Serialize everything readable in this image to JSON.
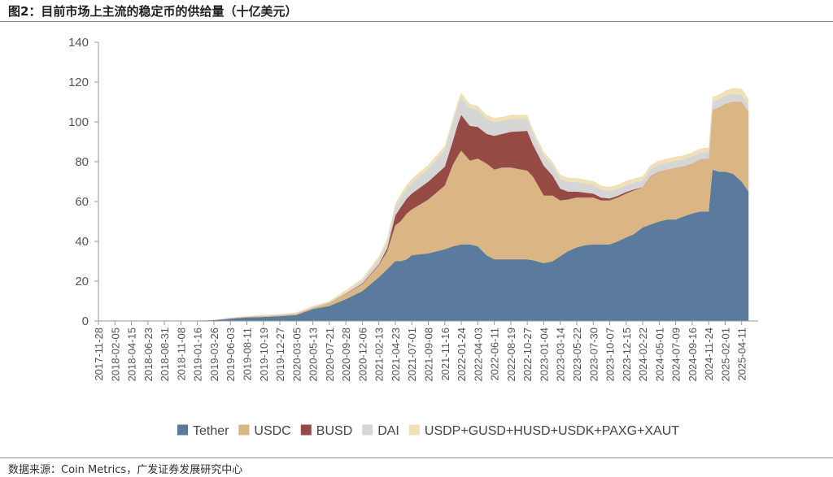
{
  "figure": {
    "title": "图2：目前市场上主流的稳定币的供给量（十亿美元）",
    "source": "数据来源：Coin Metrics，广发证券发展研究中心"
  },
  "chart_data": {
    "type": "area",
    "stacked": true,
    "title": "图2：目前市场上主流的稳定币的供给量（十亿美元）",
    "xlabel": "",
    "ylabel": "",
    "ylim": [
      0,
      140
    ],
    "yticks": [
      0,
      20,
      40,
      60,
      80,
      100,
      120,
      140
    ],
    "grid": false,
    "legend_position": "bottom",
    "x_tick_labels": [
      "2017-11-28",
      "2018-02-05",
      "2018-04-15",
      "2018-06-23",
      "2018-08-31",
      "2018-11-08",
      "2019-01-16",
      "2019-03-26",
      "2019-06-03",
      "2019-08-11",
      "2019-10-19",
      "2019-12-27",
      "2020-03-05",
      "2020-05-13",
      "2020-07-21",
      "2020-09-28",
      "2020-12-06",
      "2021-02-13",
      "2021-04-23",
      "2021-07-01",
      "2021-09-08",
      "2021-11-16",
      "2022-01-24",
      "2022-04-03",
      "2022-06-11",
      "2022-08-19",
      "2022-10-27",
      "2023-01-04",
      "2023-03-14",
      "2023-05-22",
      "2023-07-30",
      "2023-10-07",
      "2023-12-15",
      "2024-02-22",
      "2024-05-01",
      "2024-07-09",
      "2024-09-16",
      "2024-11-24",
      "2025-02-01",
      "2025-04-11"
    ],
    "x": [
      "2017-11-28",
      "2018-02-05",
      "2018-04-15",
      "2018-06-23",
      "2018-08-31",
      "2018-11-08",
      "2019-01-16",
      "2019-03-26",
      "2019-06-03",
      "2019-08-11",
      "2019-10-19",
      "2019-12-27",
      "2020-03-05",
      "2020-05-13",
      "2020-07-21",
      "2020-09-28",
      "2020-12-06",
      "2021-02-13",
      "2021-03-20",
      "2021-04-23",
      "2021-05-15",
      "2021-06-10",
      "2021-07-01",
      "2021-09-08",
      "2021-11-16",
      "2021-12-20",
      "2022-01-10",
      "2022-01-24",
      "2022-03-01",
      "2022-04-03",
      "2022-05-10",
      "2022-06-11",
      "2022-07-15",
      "2022-08-19",
      "2022-10-27",
      "2022-11-20",
      "2023-01-04",
      "2023-02-10",
      "2023-03-14",
      "2023-04-15",
      "2023-05-22",
      "2023-06-25",
      "2023-07-30",
      "2023-09-01",
      "2023-10-07",
      "2023-11-10",
      "2023-12-15",
      "2024-01-15",
      "2024-02-22",
      "2024-03-25",
      "2024-05-01",
      "2024-06-05",
      "2024-07-09",
      "2024-08-10",
      "2024-09-16",
      "2024-10-20",
      "2024-11-24",
      "2024-12-10",
      "2025-01-05",
      "2025-02-01",
      "2025-03-05",
      "2025-04-11",
      "2025-05-10"
    ],
    "series": [
      {
        "name": "Tether",
        "color": "#5b7b9c",
        "values": [
          0,
          0,
          0,
          0,
          0,
          0.1,
          0.2,
          0.4,
          1.2,
          1.8,
          2.0,
          2.4,
          3.0,
          6.0,
          7.5,
          11.0,
          15.0,
          22.0,
          26.0,
          30.0,
          30.0,
          31.0,
          33.0,
          34.0,
          36.0,
          37.5,
          38.0,
          38.5,
          38.5,
          37.5,
          33.0,
          31.0,
          31.0,
          31.0,
          31.0,
          30.5,
          29.0,
          30.0,
          32.5,
          35.0,
          37.0,
          38.0,
          38.5,
          38.5,
          38.5,
          40.0,
          42.0,
          43.5,
          47.0,
          48.5,
          50.0,
          51.0,
          51.0,
          52.5,
          54.0,
          55.0,
          55.0,
          76.0,
          75.0,
          75.0,
          74.0,
          70.0,
          65.0
        ]
      },
      {
        "name": "USDC",
        "color": "#d9b683",
        "values": [
          0,
          0,
          0,
          0,
          0,
          0,
          0,
          0,
          0.2,
          0.3,
          0.4,
          0.5,
          0.6,
          0.7,
          1.5,
          2.5,
          3.5,
          6.0,
          9.0,
          18.0,
          20.0,
          23.0,
          23.0,
          27.0,
          32.0,
          41.0,
          45.0,
          47.0,
          42.0,
          44.0,
          46.0,
          45.0,
          46.0,
          46.0,
          44.5,
          42.0,
          34.0,
          33.0,
          28.0,
          26.0,
          25.0,
          24.0,
          23.5,
          22.0,
          22.0,
          22.0,
          22.0,
          22.0,
          20.0,
          24.0,
          25.0,
          25.0,
          26.0,
          25.0,
          25.0,
          26.0,
          26.5,
          30.0,
          32.0,
          34.0,
          36.0,
          40.0,
          40.0
        ]
      },
      {
        "name": "BUSD",
        "color": "#964a46",
        "values": [
          0,
          0,
          0,
          0,
          0,
          0,
          0,
          0,
          0,
          0,
          0,
          0,
          0,
          0,
          0.1,
          0.2,
          0.3,
          0.5,
          1.5,
          5.0,
          7.0,
          7.5,
          8.0,
          9.0,
          9.5,
          12.0,
          16.0,
          18.0,
          17.5,
          16.0,
          15.0,
          17.0,
          17.0,
          18.0,
          20.0,
          16.0,
          15.0,
          10.0,
          6.0,
          4.0,
          3.0,
          2.5,
          2.0,
          1.5,
          1.0,
          0.9,
          0.8,
          0.5,
          0.2,
          0.2,
          0.1,
          0.1,
          0.1,
          0.1,
          0.1,
          0.1,
          0.1,
          0.1,
          0.1,
          0.1,
          0.1,
          0.1,
          0.1
        ]
      },
      {
        "name": "DAI",
        "color": "#d6d6d6",
        "values": [
          0,
          0,
          0,
          0,
          0,
          0,
          0.05,
          0.1,
          0.1,
          0.2,
          0.3,
          0.3,
          0.3,
          0.3,
          0.4,
          0.8,
          1.5,
          2.5,
          3.5,
          4.0,
          4.5,
          5.0,
          5.5,
          6.5,
          8.5,
          9.5,
          9.5,
          9.0,
          9.0,
          8.5,
          7.5,
          7.0,
          6.5,
          6.5,
          6.0,
          5.5,
          5.0,
          5.0,
          5.0,
          5.0,
          4.8,
          4.5,
          4.3,
          4.0,
          3.8,
          3.5,
          3.5,
          3.5,
          3.5,
          3.5,
          3.5,
          3.5,
          3.5,
          3.5,
          3.5,
          3.5,
          3.5,
          4.0,
          4.0,
          4.0,
          4.0,
          3.5,
          3.5
        ]
      },
      {
        "name": "USDP+GUSD+HUSD+USDK+PAXG+XAUT",
        "color": "#f0e0b5",
        "values": [
          0,
          0,
          0,
          0,
          0,
          0,
          0,
          0.1,
          0.2,
          0.2,
          0.3,
          0.3,
          0.4,
          0.5,
          0.5,
          1.0,
          1.0,
          1.5,
          1.5,
          2.0,
          2.0,
          2.0,
          2.0,
          2.0,
          2.0,
          2.0,
          2.0,
          2.0,
          2.0,
          2.0,
          2.0,
          2.0,
          2.0,
          2.0,
          2.0,
          2.0,
          2.0,
          2.0,
          2.0,
          2.0,
          2.0,
          2.0,
          2.0,
          2.0,
          2.0,
          2.0,
          2.0,
          2.0,
          2.0,
          2.0,
          2.0,
          2.0,
          2.0,
          2.0,
          2.0,
          2.0,
          2.0,
          2.5,
          2.5,
          2.5,
          3.0,
          3.0,
          3.0
        ]
      }
    ]
  }
}
